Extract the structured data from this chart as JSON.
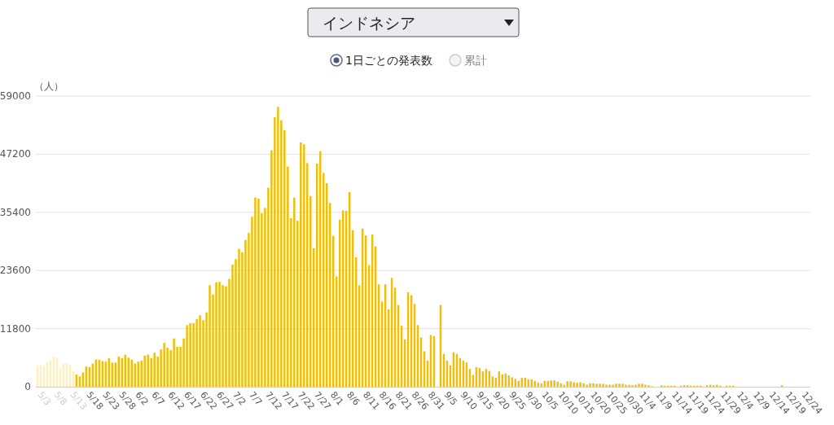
{
  "chart_data": {
    "type": "bar",
    "title": "インドネシア",
    "ylabel": "（人）",
    "annotations": [
      "1日ごとの発表数",
      "累計"
    ],
    "categories": [
      null,
      "5/3",
      null,
      null,
      null,
      null,
      "5/8",
      null,
      null,
      null,
      null,
      "5/13",
      null,
      null,
      null,
      null,
      "5/18",
      null,
      null,
      null,
      null,
      "5/23",
      null,
      null,
      null,
      null,
      "5/28",
      null,
      null,
      null,
      null,
      "6/2",
      null,
      null,
      null,
      null,
      "6/7",
      null,
      null,
      null,
      null,
      "6/12",
      null,
      null,
      null,
      null,
      "6/17",
      null,
      null,
      null,
      null,
      "6/22",
      null,
      null,
      null,
      null,
      "6/27",
      null,
      null,
      null,
      null,
      "7/2",
      null,
      null,
      null,
      null,
      "7/7",
      null,
      null,
      null,
      null,
      "7/12",
      null,
      null,
      null,
      null,
      "7/17",
      null,
      null,
      null,
      null,
      "7/22",
      null,
      null,
      null,
      null,
      "7/27",
      null,
      null,
      null,
      null,
      "8/1",
      null,
      null,
      null,
      null,
      "8/6",
      null,
      null,
      null,
      null,
      "8/11",
      null,
      null,
      null,
      null,
      "8/16",
      null,
      null,
      null,
      null,
      "8/21",
      null,
      null,
      null,
      null,
      "8/26",
      null,
      null,
      null,
      null,
      "8/31",
      null,
      null,
      null,
      null,
      "9/5",
      null,
      null,
      null,
      null,
      "9/10",
      null,
      null,
      null,
      null,
      "9/15",
      null,
      null,
      null,
      null,
      "9/20",
      null,
      null,
      null,
      null,
      "9/25",
      null,
      null,
      null,
      null,
      "9/30",
      null,
      null,
      null,
      null,
      "10/5",
      null,
      null,
      null,
      null,
      "10/10",
      null,
      null,
      null,
      null,
      "10/15",
      null,
      null,
      null,
      null,
      "10/20",
      null,
      null,
      null,
      null,
      "10/25",
      null,
      null,
      null,
      null,
      "10/30",
      null,
      null,
      null,
      null,
      "11/4",
      null,
      null,
      null,
      null,
      "11/9",
      null,
      null,
      null,
      null,
      "11/14",
      null,
      null,
      null,
      null,
      "11/19",
      null,
      null,
      null,
      null,
      "11/24",
      null,
      null,
      null,
      null,
      "11/29",
      null,
      null,
      null,
      null,
      "12/4",
      null,
      null,
      null,
      null,
      "12/9",
      null,
      null,
      null,
      null,
      "12/14",
      null,
      null,
      null,
      null,
      "12/19",
      null,
      null,
      null,
      null,
      "12/24"
    ],
    "values": [
      4300,
      4400,
      4200,
      5000,
      5400,
      6100,
      5900,
      3800,
      4700,
      4800,
      4500,
      3200,
      2500,
      2100,
      2900,
      4100,
      4000,
      4700,
      5500,
      5500,
      5200,
      5100,
      5800,
      4900,
      4900,
      6100,
      5800,
      6500,
      5900,
      5500,
      4700,
      5100,
      5300,
      6300,
      6500,
      5800,
      6900,
      6100,
      7600,
      8900,
      7900,
      7400,
      9800,
      8100,
      8100,
      9800,
      12500,
      12900,
      12900,
      13700,
      14500,
      13500,
      15100,
      20600,
      18700,
      21200,
      21300,
      20600,
      20400,
      21900,
      24800,
      25900,
      28000,
      27300,
      29800,
      31200,
      34500,
      38400,
      38200,
      35200,
      36300,
      40400,
      48000,
      54700,
      56800,
      54100,
      52100,
      44700,
      34200,
      38400,
      33700,
      49600,
      49200,
      45400,
      38700,
      28100,
      45300,
      47800,
      43400,
      41300,
      37300,
      30600,
      22400,
      33900,
      35800,
      35700,
      39500,
      31800,
      26300,
      20600,
      32100,
      30700,
      24700,
      30900,
      28500,
      20800,
      17300,
      20800,
      15700,
      22100,
      20100,
      16600,
      12400,
      9600,
      19200,
      18600,
      16800,
      12500,
      10000,
      7200,
      5300,
      10500,
      10300,
      null,
      16600,
      6700,
      5300,
      4300,
      7000,
      6700,
      5800,
      5300,
      4900,
      3600,
      2400,
      4000,
      3800,
      3100,
      3600,
      3200,
      2100,
      1800,
      3100,
      2500,
      2700,
      2300,
      1900,
      1600,
      1200,
      1800,
      1800,
      1500,
      1500,
      1200,
      800,
      700,
      1200,
      1200,
      1300,
      1300,
      1000,
      700,
      400,
      1100,
      1100,
      900,
      800,
      900,
      700,
      400,
      700,
      700,
      600,
      600,
      600,
      400,
      400,
      400,
      600,
      600,
      600,
      400,
      400,
      300,
      400,
      600,
      600,
      400,
      300,
      100,
      null,
      null,
      300,
      200,
      200,
      200,
      200,
      null,
      200,
      300,
      300,
      200,
      200,
      200,
      200,
      null,
      300,
      400,
      300,
      400,
      200,
      null,
      200,
      200,
      200,
      null,
      null,
      null,
      null,
      null,
      null,
      null,
      null,
      null,
      null,
      null,
      null,
      null,
      null,
      300,
      null,
      null,
      null,
      null,
      null,
      null,
      null
    ],
    "colors": [
      "#fcefc2",
      "#fcefc2",
      "#fcefc2",
      "#fcefc2",
      "#fcefc2",
      "#fcefc2",
      "#fcefc2",
      "#fcefc2",
      "#fcefc2",
      "#fcefc2",
      "#fcefc2",
      "#fcefc2",
      "#f0bf08",
      "#f0bf08",
      "#f0bf08",
      "#f0bf08",
      "#f0bf08",
      "#f0bf08",
      "#f0bf08",
      "#f0bf08",
      "#f0bf08",
      "#f0bf08",
      "#f0bf08",
      "#f0bf08",
      "#f0bf08",
      "#f0bf08",
      "#f0bf08",
      "#f0bf08",
      "#f0bf08",
      "#f0bf08",
      "#f0bf08",
      "#f0bf08",
      "#f0bf08",
      "#f0bf08",
      "#f0bf08",
      "#f0bf08",
      "#f0bf08",
      "#f0bf08",
      "#f0bf08",
      "#f0bf08",
      "#f0bf08",
      "#f0bf08",
      "#f0bf08",
      "#f0bf08",
      "#f0bf08",
      "#f0bf08",
      "#f0bf08",
      "#f0bf08",
      "#f0bf08",
      "#f0bf08",
      "#f0bf08",
      "#f0bf08",
      "#f0bf08",
      "#f0bf08",
      "#f0bf08",
      "#f0bf08",
      "#f0bf08",
      "#f0bf08",
      "#f0bf08",
      "#f0bf08",
      "#f0bf08",
      "#f0bf08",
      "#f0bf08",
      "#f0bf08",
      "#f0bf08",
      "#f0bf08",
      "#f0bf08",
      "#f0bf08",
      "#f0bf08",
      "#f0bf08",
      "#f0bf08",
      "#f0bf08",
      "#f0bf08",
      "#f0bf08",
      "#f0bf08",
      "#f0bf08",
      "#f0bf08",
      "#f0bf08",
      "#f0bf08",
      "#f0bf08",
      "#f0bf08",
      "#f0bf08",
      "#f0bf08",
      "#f0bf08",
      "#f0bf08",
      "#f0bf08",
      "#f0bf08",
      "#f0bf08",
      "#f0bf08",
      "#f0bf08",
      "#f0bf08",
      "#f0bf08",
      "#f0bf08",
      "#f0bf08",
      "#f0bf08",
      "#f0bf08",
      "#f0bf08",
      "#f0bf08",
      "#f0bf08",
      "#f0bf08",
      "#f0bf08",
      "#f0bf08",
      "#f0bf08",
      "#f0bf08",
      "#f0bf08",
      "#f0bf08",
      "#f0bf08",
      "#f0bf08",
      "#f0bf08",
      "#f0bf08",
      "#f0bf08",
      "#f0bf08",
      "#f0bf08",
      "#f0bf08",
      "#f0bf08",
      "#f0bf08",
      "#f0bf08",
      "#f0bf08",
      "#f0bf08",
      "#f0bf08",
      "#f0bf08",
      "#f0bf08",
      "#f0bf08",
      "#f0bf08",
      "#f0bf08",
      "#f0bf08",
      "#f0bf08",
      "#f0bf08",
      "#f0bf08",
      "#f0bf08",
      "#f0bf08",
      "#f0bf08",
      "#f0bf08",
      "#f0bf08",
      "#f0bf08",
      "#f0bf08",
      "#f0bf08",
      "#f0bf08",
      "#f0bf08",
      "#f0bf08",
      "#f0bf08",
      "#f0bf08",
      "#f0bf08",
      "#f0bf08",
      "#f0bf08",
      "#f0bf08",
      "#f0bf08",
      "#f0bf08",
      "#f0bf08",
      "#f0bf08",
      "#f0bf08",
      "#f0bf08",
      "#f0bf08",
      "#f0bf08",
      "#f0bf08",
      "#f0bf08",
      "#f0bf08",
      "#f0bf08",
      "#f0bf08",
      "#f0bf08",
      "#f0bf08",
      "#f0bf08",
      "#f0bf08",
      "#f0bf08",
      "#f0bf08",
      "#f0bf08",
      "#f0bf08",
      "#f0bf08",
      "#f0bf08",
      "#f0bf08",
      "#f0bf08",
      "#f0bf08",
      "#f0bf08",
      "#f0bf08",
      "#f0bf08",
      "#f0bf08",
      "#f0bf08",
      "#f0bf08",
      "#f0bf08",
      "#f0bf08",
      "#f0bf08",
      "#f0bf08",
      "#f0bf08",
      "#f0bf08",
      "#f0bf08",
      "#f0bf08",
      "#f0bf08",
      "#f0bf08",
      "#f0bf08",
      "#f0bf08",
      "#f0bf08",
      "#f0bf08",
      "#f0bf08",
      "#f0bf08",
      "#f0bf08",
      "#f0bf08",
      "#f0bf08",
      "#f0bf08",
      "#f0bf08",
      "#f0bf08",
      "#f0bf08",
      "#f0bf08",
      "#f0bf08",
      "#f0bf08",
      "#f0bf08",
      "#f0bf08",
      "#f0bf08",
      "#f0bf08",
      "#f0bf08",
      "#f0bf08",
      "#f0bf08",
      "#f0bf08",
      "#f0bf08",
      "#f0bf08",
      "#f0bf08",
      "#f0bf08",
      "#f0bf08",
      "#f0bf08",
      "#f0bf08",
      "#f0bf08",
      "#f0bf08",
      "#f0bf08",
      "#f0bf08",
      "#f0bf08",
      "#f0bf08",
      "#f0bf08",
      "#f0bf08",
      "#f0bf08",
      "#f0bf08",
      "#f0bf08",
      "#f0bf08",
      "#f0bf08",
      "#f0bf08",
      "#f0bf08",
      "#f0bf08",
      "#f0bf08",
      "#f0bf08"
    ],
    "ylim": [
      0,
      59000
    ],
    "yticks": [
      0,
      11800,
      23600,
      35400,
      47200,
      59000
    ],
    "grid": "y"
  }
}
